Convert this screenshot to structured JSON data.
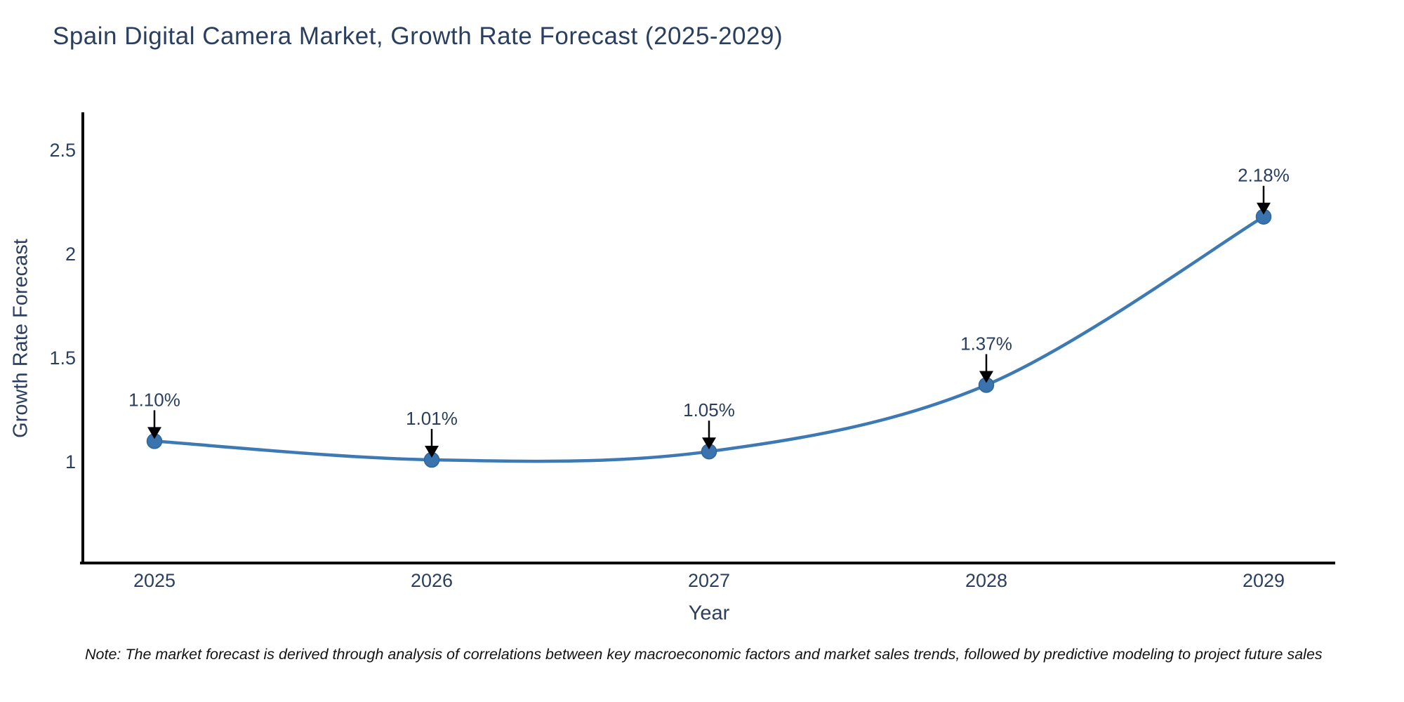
{
  "title": "Spain Digital Camera Market, Growth Rate Forecast (2025-2029)",
  "note": "Note: The market forecast is derived through analysis of correlations between key macroeconomic factors and market sales trends, followed by predictive modeling to project future sales",
  "colors": {
    "line": "#3d79b3",
    "marker_fill": "#3a74ae",
    "marker_edge": "#2f659c",
    "text": "#2a3f5f",
    "axis": "#000000",
    "arrow": "#000000",
    "note_text": "#121212"
  },
  "chart_data": {
    "type": "line",
    "title": "Spain Digital Camera Market, Growth Rate Forecast (2025-2029)",
    "x": [
      2025,
      2026,
      2027,
      2028,
      2029
    ],
    "values": [
      1.1,
      1.01,
      1.05,
      1.37,
      2.18
    ],
    "point_labels": [
      "1.10%",
      "1.01%",
      "1.05%",
      "1.37%",
      "2.18%"
    ],
    "xlabel": "Year",
    "ylabel": "Growth Rate Forecast",
    "yticks": [
      1,
      1.5,
      2,
      2.5
    ],
    "ylim": [
      0.51,
      2.69
    ],
    "grid": false,
    "legend": "none",
    "line_shape": "spline",
    "marker": "circle",
    "annotation_style": "value-label-with-down-arrow"
  }
}
